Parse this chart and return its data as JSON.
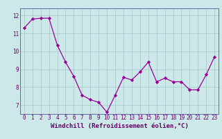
{
  "x": [
    0,
    1,
    2,
    3,
    4,
    5,
    6,
    7,
    8,
    9,
    10,
    11,
    12,
    13,
    14,
    15,
    16,
    17,
    18,
    19,
    20,
    21,
    22,
    23
  ],
  "y": [
    11.3,
    11.8,
    11.85,
    11.85,
    10.35,
    9.4,
    8.6,
    7.55,
    7.3,
    7.15,
    6.6,
    7.55,
    8.55,
    8.4,
    8.85,
    9.4,
    8.3,
    8.5,
    8.3,
    8.3,
    7.85,
    7.85,
    8.7,
    9.7
  ],
  "line_color": "#990099",
  "marker": "D",
  "marker_size": 2.2,
  "bg_color": "#cce8e8",
  "grid_color": "#aacccc",
  "xlabel": "Windchill (Refroidissement éolien,°C)",
  "ylabel": "",
  "ylim": [
    6.5,
    12.4
  ],
  "xlim": [
    -0.5,
    23.5
  ],
  "yticks": [
    7,
    8,
    9,
    10,
    11,
    12
  ],
  "xticks": [
    0,
    1,
    2,
    3,
    4,
    5,
    6,
    7,
    8,
    9,
    10,
    11,
    12,
    13,
    14,
    15,
    16,
    17,
    18,
    19,
    20,
    21,
    22,
    23
  ],
  "tick_fontsize": 5.5,
  "xlabel_fontsize": 6.5,
  "axis_color": "#660066",
  "spine_color": "#6666aa"
}
